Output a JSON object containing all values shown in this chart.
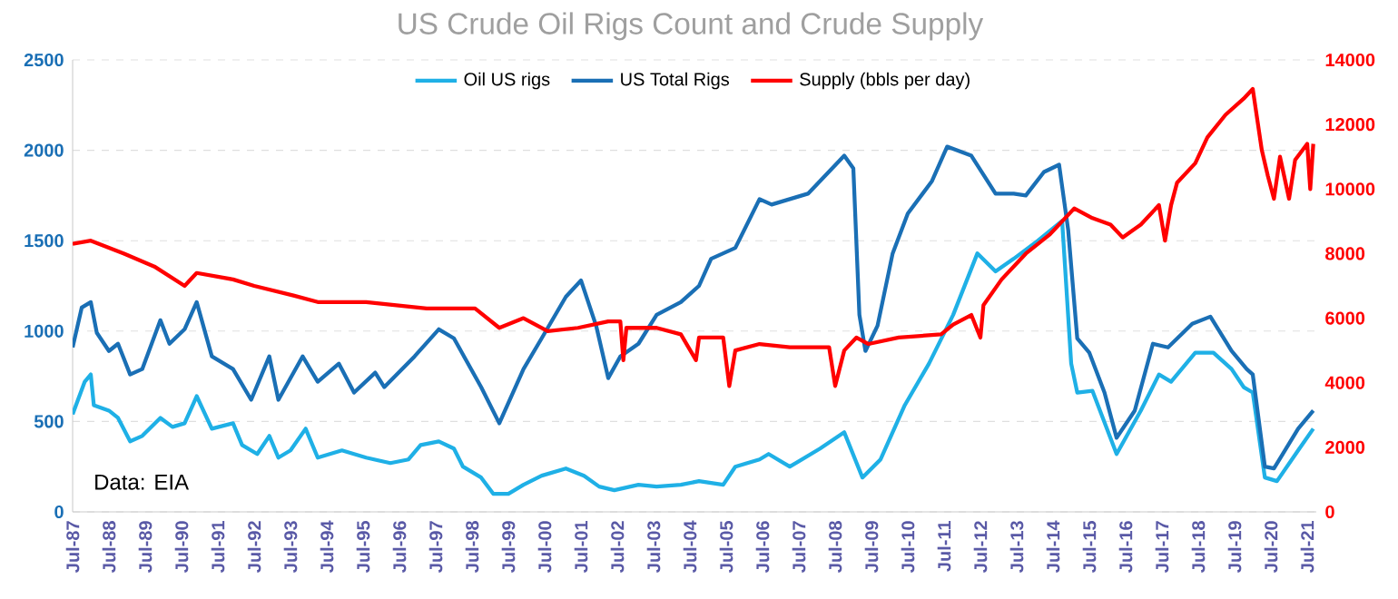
{
  "chart_data": {
    "type": "line",
    "title": "US Crude Oil Rigs Count and Crude Supply",
    "legend": "top",
    "grid": "y",
    "annotations": [
      "Data: EIA"
    ],
    "xlim": [
      "1987-07",
      "2021-10"
    ],
    "xticks": [
      {
        "value": "1987-07",
        "label": "Jul-87"
      },
      {
        "value": "1988-07",
        "label": "Jul-88"
      },
      {
        "value": "1989-07",
        "label": "Jul-89"
      },
      {
        "value": "1990-07",
        "label": "Jul-90"
      },
      {
        "value": "1991-07",
        "label": "Jul-91"
      },
      {
        "value": "1992-07",
        "label": "Jul-92"
      },
      {
        "value": "1993-07",
        "label": "Jul-93"
      },
      {
        "value": "1994-07",
        "label": "Jul-94"
      },
      {
        "value": "1995-07",
        "label": "Jul-95"
      },
      {
        "value": "1996-07",
        "label": "Jul-96"
      },
      {
        "value": "1997-07",
        "label": "Jul-97"
      },
      {
        "value": "1998-07",
        "label": "Jul-98"
      },
      {
        "value": "1999-07",
        "label": "Jul-99"
      },
      {
        "value": "2000-07",
        "label": "Jul-00"
      },
      {
        "value": "2001-07",
        "label": "Jul-01"
      },
      {
        "value": "2002-07",
        "label": "Jul-02"
      },
      {
        "value": "2003-07",
        "label": "Jul-03"
      },
      {
        "value": "2004-07",
        "label": "Jul-04"
      },
      {
        "value": "2005-07",
        "label": "Jul-05"
      },
      {
        "value": "2006-07",
        "label": "Jul-06"
      },
      {
        "value": "2007-07",
        "label": "Jul-07"
      },
      {
        "value": "2008-07",
        "label": "Jul-08"
      },
      {
        "value": "2009-07",
        "label": "Jul-09"
      },
      {
        "value": "2010-07",
        "label": "Jul-10"
      },
      {
        "value": "2011-07",
        "label": "Jul-11"
      },
      {
        "value": "2012-07",
        "label": "Jul-12"
      },
      {
        "value": "2013-07",
        "label": "Jul-13"
      },
      {
        "value": "2014-07",
        "label": "Jul-14"
      },
      {
        "value": "2015-07",
        "label": "Jul-15"
      },
      {
        "value": "2016-07",
        "label": "Jul-16"
      },
      {
        "value": "2017-07",
        "label": "Jul-17"
      },
      {
        "value": "2018-07",
        "label": "Jul-18"
      },
      {
        "value": "2019-07",
        "label": "Jul-19"
      },
      {
        "value": "2020-07",
        "label": "Jul-20"
      },
      {
        "value": "2021-07",
        "label": "Jul-21"
      }
    ],
    "ylim": [
      0,
      2500
    ],
    "yticks": [
      0,
      500,
      1000,
      1500,
      2000,
      2500
    ],
    "y2lim": [
      0,
      14000
    ],
    "y2ticks": [
      0,
      2000,
      4000,
      6000,
      8000,
      10000,
      12000,
      14000
    ],
    "series": [
      {
        "name": "Oil US rigs",
        "color": "#1fb0e6",
        "axis": "y",
        "x": [
          "1987-07",
          "1987-11",
          "1988-01",
          "1988-02",
          "1988-07",
          "1988-10",
          "1989-02",
          "1989-06",
          "1989-12",
          "1990-04",
          "1990-08",
          "1990-12",
          "1991-05",
          "1991-12",
          "1992-03",
          "1992-08",
          "1992-12",
          "1993-03",
          "1993-07",
          "1993-12",
          "1994-04",
          "1994-12",
          "1995-08",
          "1996-04",
          "1996-10",
          "1997-02",
          "1997-08",
          "1998-01",
          "1998-04",
          "1998-10",
          "1999-02",
          "1999-07",
          "1999-12",
          "2000-06",
          "2001-02",
          "2001-08",
          "2002-01",
          "2002-06",
          "2003-02",
          "2003-08",
          "2004-04",
          "2004-10",
          "2005-06",
          "2005-10",
          "2006-06",
          "2006-09",
          "2007-04",
          "2008-02",
          "2008-10",
          "2009-04",
          "2009-10",
          "2010-06",
          "2011-02",
          "2011-10",
          "2012-06",
          "2012-12",
          "2013-06",
          "2014-02",
          "2014-10",
          "2015-01",
          "2015-03",
          "2015-08",
          "2016-04",
          "2016-12",
          "2017-06",
          "2017-10",
          "2018-06",
          "2018-12",
          "2019-06",
          "2019-10",
          "2020-01",
          "2020-05",
          "2020-09",
          "2021-04",
          "2021-09"
        ],
        "values": [
          540,
          720,
          760,
          590,
          560,
          520,
          390,
          420,
          520,
          470,
          490,
          640,
          460,
          490,
          370,
          320,
          420,
          300,
          340,
          460,
          300,
          340,
          300,
          270,
          290,
          370,
          390,
          350,
          250,
          190,
          100,
          100,
          150,
          200,
          240,
          200,
          140,
          120,
          150,
          140,
          150,
          170,
          150,
          250,
          290,
          320,
          250,
          350,
          440,
          190,
          290,
          590,
          820,
          1090,
          1430,
          1330,
          1400,
          1500,
          1610,
          820,
          660,
          670,
          320,
          560,
          760,
          720,
          880,
          880,
          790,
          690,
          660,
          190,
          170,
          340,
          460
        ]
      },
      {
        "name": "US Total Rigs",
        "color": "#1a6fb5",
        "axis": "y",
        "x": [
          "1987-07",
          "1987-10",
          "1988-01",
          "1988-03",
          "1988-07",
          "1988-10",
          "1989-02",
          "1989-06",
          "1989-12",
          "1990-03",
          "1990-08",
          "1990-12",
          "1991-05",
          "1991-12",
          "1992-06",
          "1992-12",
          "1993-03",
          "1993-11",
          "1994-04",
          "1994-11",
          "1995-04",
          "1995-11",
          "1996-02",
          "1996-12",
          "1997-08",
          "1998-01",
          "1998-10",
          "1999-04",
          "1999-12",
          "2000-06",
          "2001-02",
          "2001-07",
          "2001-12",
          "2002-04",
          "2002-08",
          "2003-02",
          "2003-08",
          "2004-04",
          "2004-10",
          "2005-02",
          "2005-10",
          "2006-06",
          "2006-10",
          "2007-10",
          "2008-10",
          "2009-01",
          "2009-03",
          "2009-05",
          "2009-09",
          "2010-02",
          "2010-07",
          "2011-03",
          "2011-08",
          "2012-04",
          "2012-12",
          "2013-06",
          "2013-10",
          "2014-04",
          "2014-09",
          "2014-12",
          "2015-03",
          "2015-07",
          "2015-12",
          "2016-04",
          "2016-10",
          "2017-04",
          "2017-09",
          "2018-05",
          "2018-11",
          "2019-06",
          "2019-11",
          "2020-01",
          "2020-05",
          "2020-08",
          "2021-04",
          "2021-09"
        ],
        "values": [
          910,
          1130,
          1160,
          990,
          890,
          930,
          760,
          790,
          1060,
          930,
          1010,
          1160,
          860,
          790,
          620,
          860,
          620,
          860,
          720,
          820,
          660,
          770,
          690,
          860,
          1010,
          960,
          690,
          490,
          790,
          960,
          1190,
          1280,
          1030,
          740,
          860,
          930,
          1090,
          1160,
          1250,
          1400,
          1460,
          1730,
          1700,
          1760,
          1970,
          1900,
          1090,
          890,
          1030,
          1430,
          1650,
          1830,
          2020,
          1970,
          1760,
          1760,
          1750,
          1880,
          1920,
          1560,
          960,
          880,
          660,
          410,
          560,
          930,
          910,
          1040,
          1080,
          890,
          790,
          760,
          250,
          240,
          460,
          560
        ]
      },
      {
        "name": "Supply (bbls per day)",
        "color": "#ff0000",
        "axis": "y2",
        "x": [
          "1987-07",
          "1988-01",
          "1988-12",
          "1989-10",
          "1990-08",
          "1990-12",
          "1991-12",
          "1992-07",
          "1993-08",
          "1994-04",
          "1995-08",
          "1997-04",
          "1998-08",
          "1999-04",
          "1999-12",
          "2000-08",
          "2001-06",
          "2002-04",
          "2002-08",
          "2002-09",
          "2002-10",
          "2003-08",
          "2004-04",
          "2004-09",
          "2004-10",
          "2005-06",
          "2005-08",
          "2005-10",
          "2006-06",
          "2007-04",
          "2008-05",
          "2008-07",
          "2008-10",
          "2009-02",
          "2009-06",
          "2010-04",
          "2011-06",
          "2011-10",
          "2012-04",
          "2012-07",
          "2012-08",
          "2013-02",
          "2013-10",
          "2014-06",
          "2015-02",
          "2015-08",
          "2016-02",
          "2016-06",
          "2016-12",
          "2017-06",
          "2017-08",
          "2017-10",
          "2017-12",
          "2018-06",
          "2018-10",
          "2019-04",
          "2019-10",
          "2020-01",
          "2020-04",
          "2020-06",
          "2020-08",
          "2020-10",
          "2021-01",
          "2021-03",
          "2021-07",
          "2021-08",
          "2021-09"
        ],
        "values": [
          8300,
          8400,
          8000,
          7600,
          7000,
          7400,
          7200,
          7000,
          6700,
          6500,
          6500,
          6300,
          6300,
          5700,
          6000,
          5600,
          5700,
          5900,
          5900,
          4700,
          5700,
          5700,
          5500,
          4700,
          5400,
          5400,
          3900,
          5000,
          5200,
          5100,
          5100,
          3900,
          5000,
          5400,
          5200,
          5400,
          5500,
          5800,
          6100,
          5400,
          6400,
          7200,
          8000,
          8600,
          9400,
          9100,
          8900,
          8500,
          8900,
          9500,
          8400,
          9500,
          10200,
          10800,
          11600,
          12300,
          12800,
          13100,
          11200,
          10400,
          9700,
          11000,
          9700,
          10900,
          11400,
          10000,
          11400
        ]
      }
    ]
  }
}
